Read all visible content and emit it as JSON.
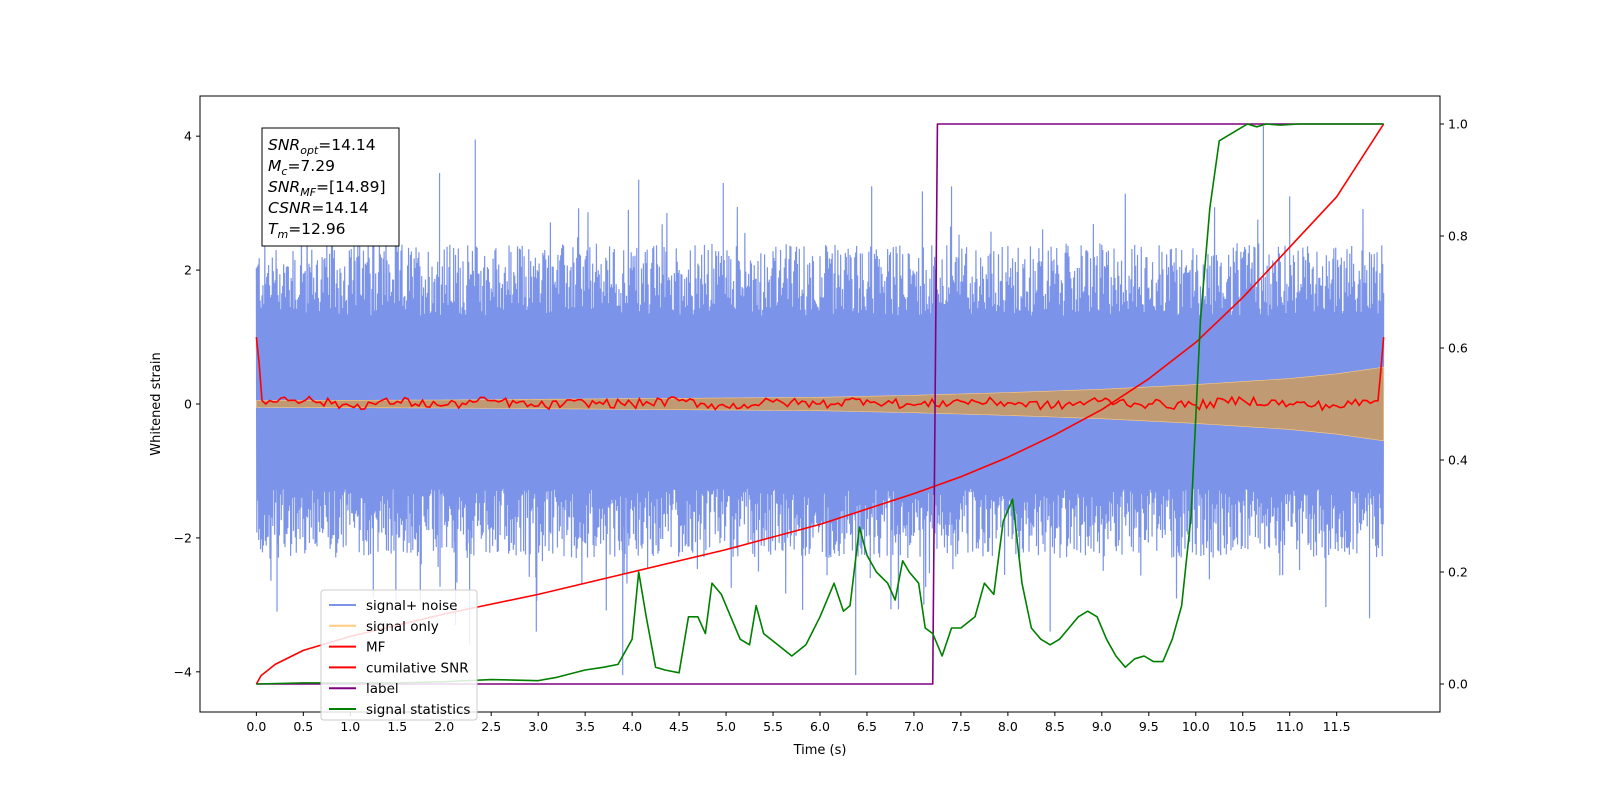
{
  "colors": {
    "signal_noise": "#7b93e8",
    "signal_only": "#ffcc80",
    "signal_only_dense": "#c49a6c",
    "mf": "#ff0000",
    "cumulative_snr": "#ff0000",
    "label": "#800080",
    "signal_statistics": "#008000"
  },
  "info_box": {
    "lines": [
      {
        "name": "SNR",
        "sub": "opt",
        "value": "=14.14"
      },
      {
        "name": "M",
        "sub": "c",
        "value": "=7.29"
      },
      {
        "name": "SNR",
        "sub": "MF",
        "value": "=[14.89]"
      },
      {
        "name": "CSNR",
        "sub": "",
        "value": "=14.14"
      },
      {
        "name": "T",
        "sub": "m",
        "value": "=12.96"
      }
    ]
  },
  "chart_data": {
    "type": "line",
    "xlabel": "Time (s)",
    "ylabel": "Whitened strain",
    "xlim": [
      -0.6,
      12.6
    ],
    "ylim": [
      -4.6,
      4.6
    ],
    "ylim_right": [
      -0.05,
      1.05
    ],
    "xticks": [
      0.0,
      0.5,
      1.0,
      1.5,
      2.0,
      2.5,
      3.0,
      3.5,
      4.0,
      4.5,
      5.0,
      5.5,
      6.0,
      6.5,
      7.0,
      7.5,
      8.0,
      8.5,
      9.0,
      9.5,
      10.0,
      10.5,
      11.0,
      11.5
    ],
    "xtick_labels": [
      "0.0",
      "0.5",
      "1.0",
      "1.5",
      "2.0",
      "2.5",
      "3.0",
      "3.5",
      "4.0",
      "4.5",
      "5.0",
      "5.5",
      "6.0",
      "6.5",
      "7.0",
      "7.5",
      "8.0",
      "8.5",
      "9.0",
      "9.5",
      "10.0",
      "10.5",
      "11.0",
      "11.5"
    ],
    "yticks": [
      -4,
      -2,
      0,
      2,
      4
    ],
    "ytick_labels": [
      "−4",
      "−2",
      "0",
      "2",
      "4"
    ],
    "yticks_right": [
      0.0,
      0.2,
      0.4,
      0.6,
      0.8,
      1.0
    ],
    "ytick_right_labels": [
      "0.0",
      "0.2",
      "0.4",
      "0.6",
      "0.8",
      "1.0"
    ],
    "legend_position": "lower-left",
    "legend": [
      "signal+ noise",
      "signal only",
      "MF",
      "cumilative SNR",
      "label",
      "signal statistics"
    ],
    "series": [
      {
        "name": "signal+ noise",
        "axis": "left",
        "style": "noise band",
        "x_range": [
          0.0,
          12.0
        ],
        "envelope_high": 2.4,
        "envelope_low": -2.3,
        "peaks": [
          [
            2.33,
            3.95
          ],
          [
            1.95,
            3.45
          ],
          [
            4.07,
            3.35
          ],
          [
            4.97,
            3.3
          ],
          [
            6.55,
            3.25
          ],
          [
            10.72,
            4.15
          ],
          [
            7.4,
            3.25
          ],
          [
            11.0,
            3.1
          ]
        ],
        "troughs": [
          [
            3.9,
            -4.05
          ],
          [
            6.38,
            -4.05
          ],
          [
            0.22,
            -3.1
          ],
          [
            2.12,
            -3.3
          ],
          [
            2.27,
            -3.6
          ],
          [
            2.98,
            -3.4
          ],
          [
            8.45,
            -3.4
          ],
          [
            11.85,
            -3.2
          ]
        ]
      },
      {
        "name": "signal only",
        "axis": "left",
        "style": "chirp envelope",
        "x": [
          0.0,
          2.0,
          4.0,
          6.0,
          7.0,
          8.0,
          9.0,
          10.0,
          11.0,
          11.5,
          12.0
        ],
        "amplitude": [
          0.05,
          0.06,
          0.08,
          0.1,
          0.13,
          0.17,
          0.22,
          0.29,
          0.38,
          0.45,
          0.55
        ]
      },
      {
        "name": "MF",
        "axis": "left",
        "x": [
          0.0,
          0.03,
          0.06,
          0.1,
          0.3,
          0.6,
          1.0,
          1.5,
          2.0,
          2.5,
          3.0,
          3.5,
          4.0,
          4.5,
          5.0,
          5.5,
          6.0,
          6.5,
          7.0,
          7.5,
          8.0,
          8.5,
          9.0,
          9.5,
          10.0,
          10.5,
          11.0,
          11.5,
          11.94,
          11.97,
          12.0
        ],
        "y": [
          1.0,
          0.6,
          0.05,
          0.0,
          0.1,
          0.05,
          -0.03,
          0.04,
          -0.02,
          0.05,
          -0.03,
          0.02,
          0.0,
          0.05,
          -0.04,
          0.03,
          0.0,
          0.06,
          -0.02,
          0.04,
          0.02,
          -0.03,
          0.05,
          0.0,
          -0.02,
          0.06,
          0.0,
          -0.03,
          0.05,
          0.5,
          1.0
        ]
      },
      {
        "name": "cumilative SNR",
        "axis": "right",
        "x": [
          0.0,
          0.05,
          0.2,
          0.5,
          1.0,
          1.5,
          2.0,
          3.0,
          4.0,
          5.0,
          6.0,
          7.0,
          7.5,
          8.0,
          8.5,
          9.0,
          9.5,
          10.0,
          10.5,
          11.0,
          11.5,
          12.0
        ],
        "y": [
          0.0,
          0.015,
          0.035,
          0.06,
          0.085,
          0.105,
          0.125,
          0.16,
          0.2,
          0.24,
          0.285,
          0.34,
          0.37,
          0.405,
          0.445,
          0.49,
          0.545,
          0.61,
          0.69,
          0.78,
          0.87,
          1.0
        ]
      },
      {
        "name": "label",
        "axis": "right",
        "x": [
          0.0,
          7.2,
          7.25,
          12.0
        ],
        "y": [
          0.0,
          0.0,
          1.0,
          1.0
        ]
      },
      {
        "name": "signal statistics",
        "axis": "right",
        "x": [
          0.0,
          0.5,
          1.0,
          1.5,
          2.0,
          2.5,
          3.0,
          3.2,
          3.5,
          3.7,
          3.85,
          4.0,
          4.07,
          4.15,
          4.25,
          4.35,
          4.5,
          4.6,
          4.7,
          4.78,
          4.85,
          4.95,
          5.05,
          5.15,
          5.25,
          5.32,
          5.4,
          5.55,
          5.7,
          5.85,
          6.0,
          6.15,
          6.25,
          6.32,
          6.42,
          6.5,
          6.6,
          6.72,
          6.8,
          6.88,
          6.95,
          7.05,
          7.12,
          7.2,
          7.3,
          7.4,
          7.5,
          7.65,
          7.75,
          7.85,
          7.95,
          8.05,
          8.15,
          8.25,
          8.35,
          8.45,
          8.55,
          8.65,
          8.75,
          8.85,
          8.95,
          9.05,
          9.15,
          9.25,
          9.35,
          9.45,
          9.55,
          9.65,
          9.75,
          9.85,
          9.95,
          10.05,
          10.15,
          10.25,
          10.35,
          10.45,
          10.55,
          10.65,
          10.75,
          10.9,
          11.1,
          11.5,
          12.0
        ],
        "y": [
          0.0,
          0.002,
          0.002,
          0.002,
          0.004,
          0.008,
          0.006,
          0.012,
          0.025,
          0.03,
          0.035,
          0.08,
          0.2,
          0.12,
          0.03,
          0.025,
          0.02,
          0.12,
          0.12,
          0.09,
          0.18,
          0.16,
          0.12,
          0.08,
          0.07,
          0.14,
          0.09,
          0.07,
          0.05,
          0.07,
          0.12,
          0.18,
          0.13,
          0.14,
          0.28,
          0.23,
          0.2,
          0.18,
          0.15,
          0.22,
          0.2,
          0.18,
          0.1,
          0.09,
          0.05,
          0.1,
          0.1,
          0.12,
          0.18,
          0.16,
          0.29,
          0.33,
          0.18,
          0.1,
          0.08,
          0.07,
          0.08,
          0.1,
          0.12,
          0.13,
          0.12,
          0.08,
          0.05,
          0.03,
          0.045,
          0.05,
          0.04,
          0.04,
          0.08,
          0.14,
          0.3,
          0.65,
          0.85,
          0.97,
          0.98,
          0.99,
          1.0,
          0.995,
          1.0,
          0.998,
          1.0,
          1.0,
          1.0
        ]
      }
    ]
  }
}
